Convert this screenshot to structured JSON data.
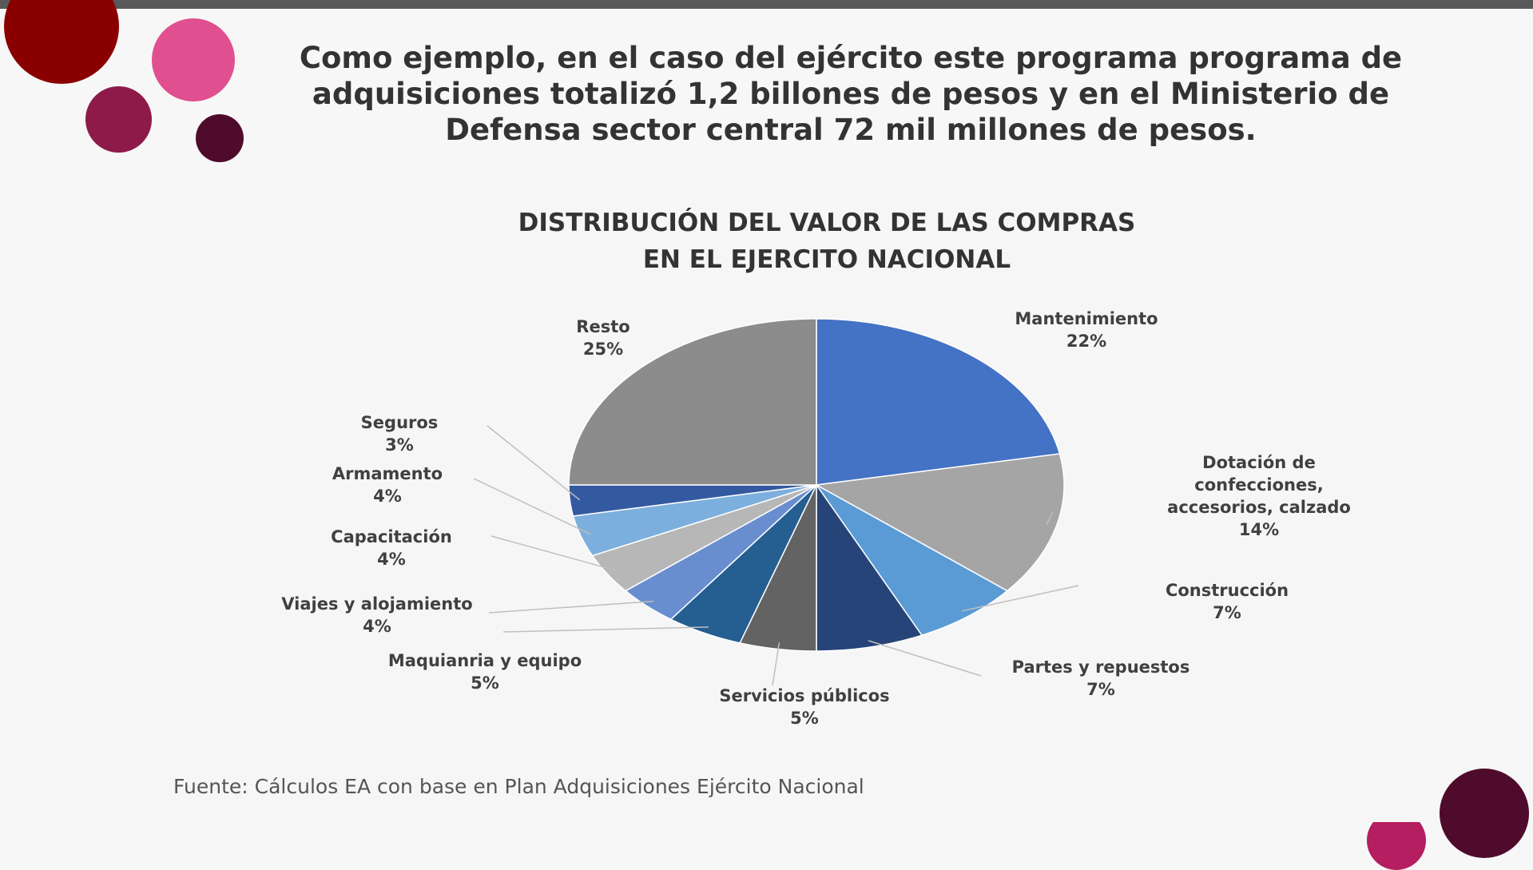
{
  "slide": {
    "headline": "Como ejemplo, en el caso del ejército este programa programa de adquisiciones totalizó 1,2 billones de pesos y en el Ministerio de Defensa sector central 72 mil millones de pesos.",
    "source": "Fuente: Cálculos EA con base en Plan Adquisiciones Ejército Nacional",
    "colors": {
      "top_bar": "#595959",
      "circle_dark_red": "#8a0000",
      "circle_pink": "#e05090",
      "circle_magenta": "#8e1a4a",
      "circle_plum": "#4e0b2b",
      "circle_raspberry": "#b51e60"
    }
  },
  "chart_data": {
    "type": "pie",
    "title": "DISTRIBUCIÓN DEL VALOR DE LAS COMPRAS EN EL EJERCITO NACIONAL",
    "title_lines": [
      "DISTRIBUCIÓN DEL VALOR DE LAS COMPRAS",
      "EN EL EJERCITO NACIONAL"
    ],
    "slices": [
      {
        "label": "Mantenimiento",
        "label_lines": [
          "Mantenimiento"
        ],
        "value": 22,
        "display": "22%",
        "color": "#4472c4"
      },
      {
        "label": "Dotación de confecciones, accesorios, calzado",
        "label_lines": [
          "Dotación de",
          "confecciones,",
          "accesorios, calzado"
        ],
        "value": 14,
        "display": "14%",
        "color": "#a5a5a5"
      },
      {
        "label": "Construcción",
        "label_lines": [
          "Construcción"
        ],
        "value": 7,
        "display": "7%",
        "color": "#5b9bd5"
      },
      {
        "label": "Partes y repuestos",
        "label_lines": [
          "Partes y repuestos"
        ],
        "value": 7,
        "display": "7%",
        "color": "#264478"
      },
      {
        "label": "Servicios públicos",
        "label_lines": [
          "Servicios públicos"
        ],
        "value": 5,
        "display": "5%",
        "color": "#636363"
      },
      {
        "label": "Maquianria y equipo",
        "label_lines": [
          "Maquianria y equipo"
        ],
        "value": 5,
        "display": "5%",
        "color": "#255e91"
      },
      {
        "label": "Viajes y alojamiento",
        "label_lines": [
          "Viajes y alojamiento"
        ],
        "value": 4,
        "display": "4%",
        "color": "#698ed0"
      },
      {
        "label": "Capacitación",
        "label_lines": [
          "Capacitación"
        ],
        "value": 4,
        "display": "4%",
        "color": "#b7b7b7"
      },
      {
        "label": "Armamento",
        "label_lines": [
          "Armamento"
        ],
        "value": 4,
        "display": "4%",
        "color": "#7cafdd"
      },
      {
        "label": "Seguros",
        "label_lines": [
          "Seguros"
        ],
        "value": 3,
        "display": "3%",
        "color": "#335aa1"
      },
      {
        "label": "Resto",
        "label_lines": [
          "Resto"
        ],
        "value": 25,
        "display": "25%",
        "color": "#8c8c8c"
      }
    ],
    "legend": "none",
    "data_labels": "outside with leader lines"
  }
}
